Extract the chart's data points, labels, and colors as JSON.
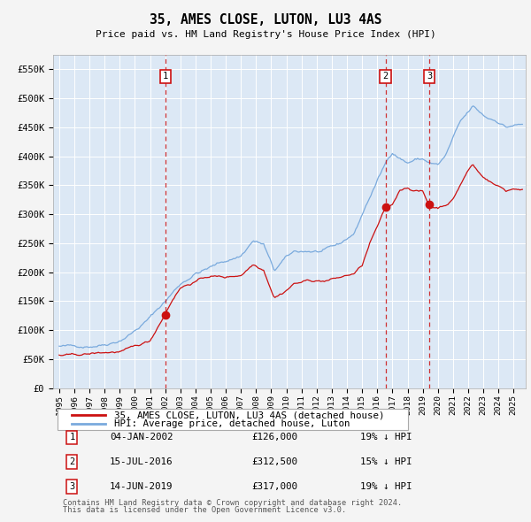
{
  "title": "35, AMES CLOSE, LUTON, LU3 4AS",
  "subtitle": "Price paid vs. HM Land Registry's House Price Index (HPI)",
  "hpi_color": "#7aaadd",
  "price_color": "#cc1111",
  "plot_bg": "#dce8f5",
  "fig_bg": "#f4f4f4",
  "grid_color": "#ffffff",
  "transactions": [
    {
      "num": 1,
      "date": "04-JAN-2002",
      "price": 126000,
      "pct": "19%",
      "dir": "↓",
      "x_year": 2002.01
    },
    {
      "num": 2,
      "date": "15-JUL-2016",
      "price": 312500,
      "pct": "15%",
      "dir": "↓",
      "x_year": 2016.54
    },
    {
      "num": 3,
      "date": "14-JUN-2019",
      "price": 317000,
      "pct": "19%",
      "dir": "↓",
      "x_year": 2019.45
    }
  ],
  "ylim": [
    0,
    575000
  ],
  "xlim_start": 1994.6,
  "xlim_end": 2025.8,
  "ylabel_ticks": [
    0,
    50000,
    100000,
    150000,
    200000,
    250000,
    300000,
    350000,
    400000,
    450000,
    500000,
    550000
  ],
  "ylabel_labels": [
    "£0",
    "£50K",
    "£100K",
    "£150K",
    "£200K",
    "£250K",
    "£300K",
    "£350K",
    "£400K",
    "£450K",
    "£500K",
    "£550K"
  ],
  "xtick_years": [
    1995,
    1996,
    1997,
    1998,
    1999,
    2000,
    2001,
    2002,
    2003,
    2004,
    2005,
    2006,
    2007,
    2008,
    2009,
    2010,
    2011,
    2012,
    2013,
    2014,
    2015,
    2016,
    2017,
    2018,
    2019,
    2020,
    2021,
    2022,
    2023,
    2024,
    2025
  ],
  "legend_label_price": "35, AMES CLOSE, LUTON, LU3 4AS (detached house)",
  "legend_label_hpi": "HPI: Average price, detached house, Luton",
  "footer_line1": "Contains HM Land Registry data © Crown copyright and database right 2024.",
  "footer_line2": "This data is licensed under the Open Government Licence v3.0."
}
